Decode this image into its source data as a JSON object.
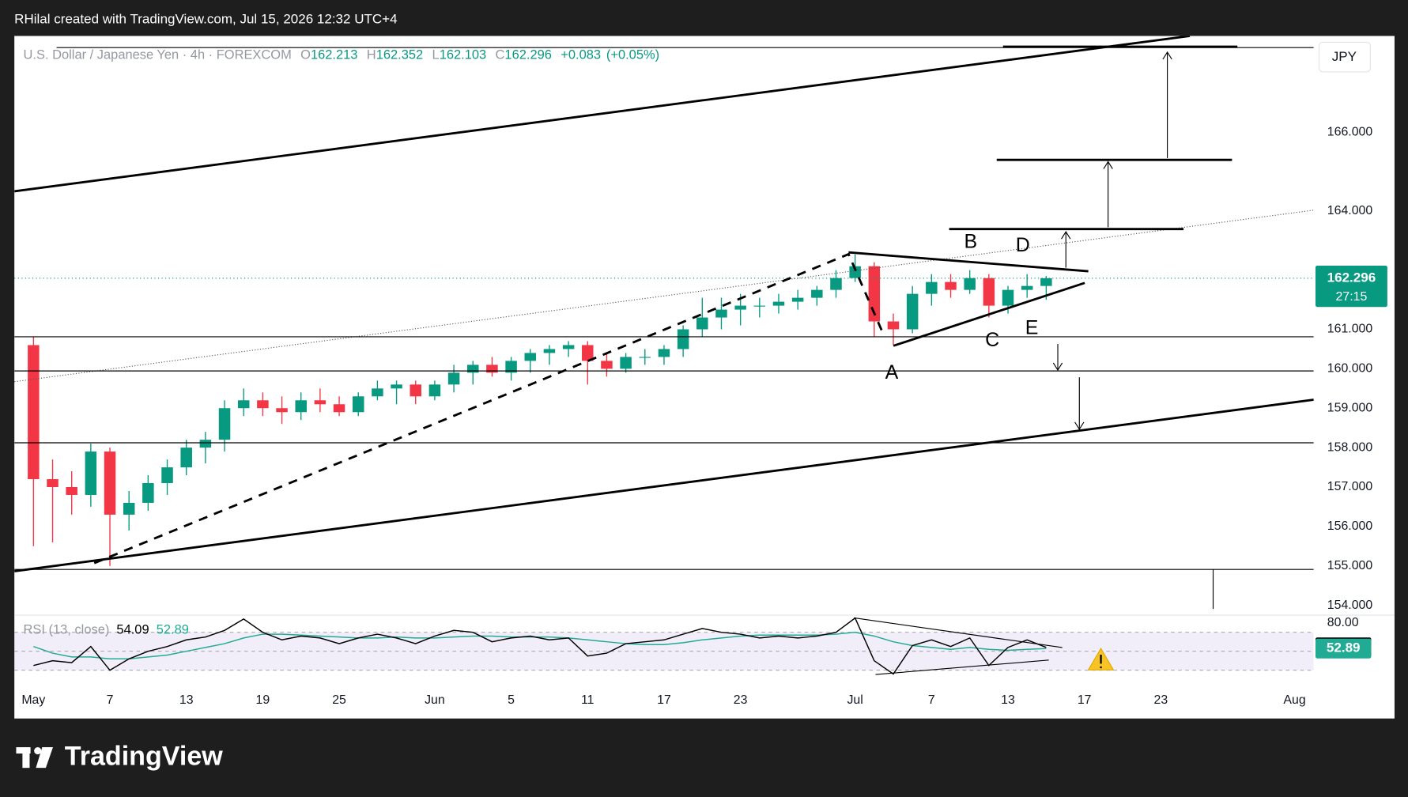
{
  "header": "RHilal created with TradingView.com, Jul 15, 2026 12:32 UTC+4",
  "branding": "TradingView",
  "chart_data": {
    "type": "candlestick",
    "title": "U.S. Dollar / Japanese Yen · 4h · FOREXCOM",
    "ohlc": [
      {
        "label": "O",
        "value": 162.213
      },
      {
        "label": "H",
        "value": 162.352
      },
      {
        "label": "L",
        "value": 162.103
      },
      {
        "label": "C",
        "value": 162.296
      }
    ],
    "change": {
      "value": 0.083,
      "label": "+0.083"
    },
    "change_pct": {
      "value": 0.05,
      "label": "(+0.05%)"
    },
    "currency": "JPY",
    "countdown": "27:15",
    "colors": {
      "up": "#089981",
      "down": "#f23645"
    },
    "x": [
      "2026-05-01",
      "2026-05-04",
      "2026-05-05",
      "2026-05-06",
      "2026-05-07",
      "2026-05-08",
      "2026-05-11",
      "2026-05-12",
      "2026-05-13",
      "2026-05-14",
      "2026-05-15",
      "2026-05-18",
      "2026-05-19",
      "2026-05-20",
      "2026-05-21",
      "2026-05-22",
      "2026-05-25",
      "2026-05-26",
      "2026-05-27",
      "2026-05-28",
      "2026-05-29",
      "2026-06-01",
      "2026-06-02",
      "2026-06-03",
      "2026-06-04",
      "2026-06-05",
      "2026-06-08",
      "2026-06-09",
      "2026-06-10",
      "2026-06-11",
      "2026-06-12",
      "2026-06-15",
      "2026-06-16",
      "2026-06-17",
      "2026-06-18",
      "2026-06-19",
      "2026-06-22",
      "2026-06-23",
      "2026-06-24",
      "2026-06-25",
      "2026-06-26",
      "2026-06-29",
      "2026-06-30",
      "2026-07-01",
      "2026-07-02",
      "2026-07-03",
      "2026-07-06",
      "2026-07-07",
      "2026-07-08",
      "2026-07-09",
      "2026-07-10",
      "2026-07-13",
      "2026-07-14",
      "2026-07-15"
    ],
    "open": [
      160.6,
      157.2,
      157.0,
      156.8,
      157.9,
      156.3,
      156.6,
      157.1,
      157.5,
      158.0,
      158.2,
      159.0,
      159.2,
      159.0,
      158.9,
      159.2,
      159.1,
      158.9,
      159.3,
      159.5,
      159.6,
      159.3,
      159.6,
      159.9,
      160.1,
      159.9,
      160.2,
      160.4,
      160.5,
      160.6,
      160.2,
      160.0,
      160.3,
      160.3,
      160.5,
      161.0,
      161.3,
      161.5,
      161.6,
      161.6,
      161.7,
      161.8,
      162.0,
      162.3,
      162.6,
      161.2,
      161.0,
      161.9,
      162.2,
      162.0,
      162.3,
      161.6,
      162.0,
      162.1
    ],
    "high": [
      160.8,
      157.7,
      157.4,
      158.1,
      158.0,
      156.9,
      157.3,
      157.7,
      158.2,
      158.4,
      159.2,
      159.5,
      159.4,
      159.3,
      159.4,
      159.5,
      159.3,
      159.4,
      159.7,
      159.7,
      159.7,
      159.7,
      160.1,
      160.2,
      160.3,
      160.3,
      160.5,
      160.6,
      160.7,
      160.7,
      160.4,
      160.4,
      160.5,
      160.6,
      161.1,
      161.8,
      161.8,
      161.9,
      161.8,
      161.9,
      162.0,
      162.1,
      162.5,
      162.9,
      162.7,
      161.4,
      162.1,
      162.4,
      162.4,
      162.5,
      162.4,
      162.1,
      162.4,
      162.352
    ],
    "low": [
      155.5,
      155.6,
      156.3,
      156.5,
      155.0,
      155.9,
      156.4,
      156.8,
      157.3,
      157.6,
      157.9,
      158.8,
      158.8,
      158.6,
      158.7,
      158.9,
      158.8,
      158.8,
      159.2,
      159.1,
      159.1,
      159.2,
      159.4,
      159.6,
      159.8,
      159.7,
      159.9,
      160.1,
      160.3,
      159.6,
      159.8,
      159.9,
      160.1,
      160.1,
      160.3,
      160.8,
      161.0,
      161.1,
      161.3,
      161.4,
      161.5,
      161.6,
      161.8,
      162.2,
      160.8,
      160.6,
      160.9,
      161.6,
      161.8,
      161.9,
      161.3,
      161.4,
      161.8,
      161.75
    ],
    "close": [
      157.2,
      157.0,
      156.8,
      157.9,
      156.3,
      156.6,
      157.1,
      157.5,
      158.0,
      158.2,
      159.0,
      159.2,
      159.0,
      158.9,
      159.2,
      159.1,
      158.9,
      159.3,
      159.5,
      159.6,
      159.3,
      159.6,
      159.9,
      160.1,
      159.9,
      160.2,
      160.4,
      160.5,
      160.6,
      160.2,
      160.0,
      160.3,
      160.3,
      160.5,
      161.0,
      161.3,
      161.5,
      161.6,
      161.6,
      161.7,
      161.8,
      162.0,
      162.3,
      162.6,
      161.2,
      161.0,
      161.9,
      162.2,
      162.0,
      162.3,
      161.6,
      162.0,
      162.1,
      162.296
    ],
    "xlim": [
      "2026-04-30",
      "2026-08-04"
    ],
    "xticks": [
      {
        "value": "2026-05-01",
        "label": "May"
      },
      {
        "value": "2026-05-07",
        "label": "7"
      },
      {
        "value": "2026-05-13",
        "label": "13"
      },
      {
        "value": "2026-05-19",
        "label": "19"
      },
      {
        "value": "2026-05-25",
        "label": "25"
      },
      {
        "value": "2026-06-01",
        "label": "Jun"
      },
      {
        "value": "2026-06-05",
        "label": "5"
      },
      {
        "value": "2026-06-11",
        "label": "11"
      },
      {
        "value": "2026-06-17",
        "label": "17"
      },
      {
        "value": "2026-06-23",
        "label": "23"
      },
      {
        "value": "2026-07-01",
        "label": "Jul"
      },
      {
        "value": "2026-07-07",
        "label": "7"
      },
      {
        "value": "2026-07-13",
        "label": "13"
      },
      {
        "value": "2026-07-17",
        "label": "17"
      },
      {
        "value": "2026-07-23",
        "label": "23"
      },
      {
        "value": "2026-08-01",
        "label": "Aug"
      }
    ],
    "ylim": [
      153.75,
      168.44
    ],
    "yticks": [
      {
        "value": 154,
        "label": "154.000"
      },
      {
        "value": 155,
        "label": "155.000"
      },
      {
        "value": 156,
        "label": "156.000"
      },
      {
        "value": 157,
        "label": "157.000"
      },
      {
        "value": 158,
        "label": "158.000"
      },
      {
        "value": 159,
        "label": "159.000"
      },
      {
        "value": 160,
        "label": "160.000"
      },
      {
        "value": 161,
        "label": "161.000"
      },
      {
        "value": 164,
        "label": "164.000"
      },
      {
        "value": 166,
        "label": "166.000"
      }
    ],
    "grid": false,
    "annotations": [
      "A",
      "B",
      "C",
      "D",
      "E"
    ],
    "rsi": {
      "title": "RSI (13, close)",
      "color": "#000000",
      "ma_color": "#22ab94",
      "band_color": "rgba(126,87,194,0.10)",
      "values": [
        35,
        40,
        38,
        55,
        30,
        42,
        50,
        55,
        62,
        65,
        72,
        84,
        70,
        62,
        66,
        64,
        58,
        64,
        68,
        64,
        58,
        66,
        72,
        70,
        60,
        64,
        66,
        62,
        64,
        45,
        48,
        58,
        60,
        62,
        68,
        74,
        70,
        68,
        64,
        66,
        64,
        66,
        70,
        85,
        40,
        26,
        56,
        62,
        55,
        64,
        35,
        54,
        62,
        54.09
      ],
      "ma_values": [
        55,
        48,
        44,
        44,
        42,
        42,
        44,
        46,
        50,
        54,
        58,
        64,
        68,
        68,
        67,
        66,
        65,
        64,
        64,
        65,
        64,
        64,
        65,
        66,
        66,
        65,
        65,
        65,
        64,
        62,
        60,
        58,
        57,
        57,
        59,
        62,
        64,
        66,
        67,
        67,
        67,
        67,
        68,
        70,
        66,
        60,
        56,
        54,
        52,
        54,
        52,
        51,
        52,
        52.89
      ],
      "ylim": [
        17,
        88
      ],
      "yticks": [
        {
          "value": 80,
          "label": "80.00"
        }
      ],
      "levels": [
        70,
        50,
        30
      ]
    }
  }
}
